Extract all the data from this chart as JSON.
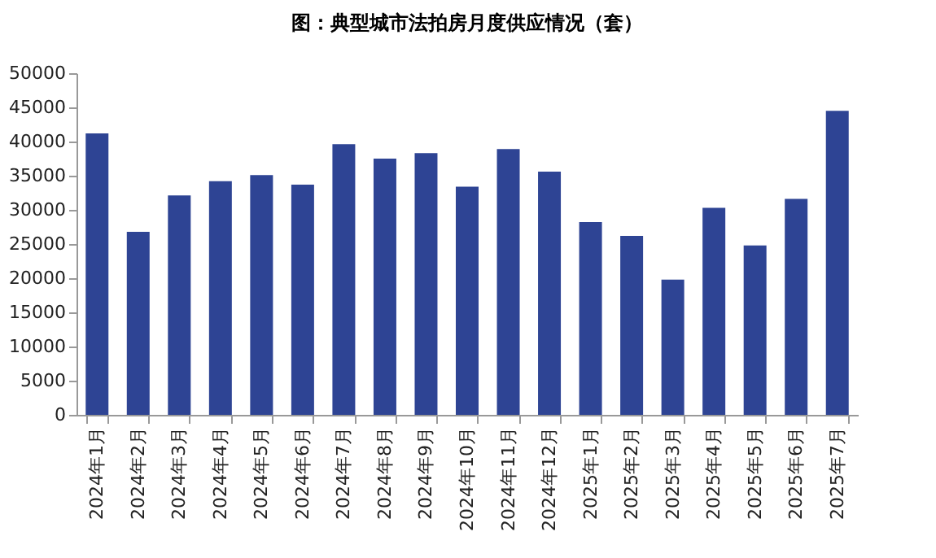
{
  "chart_data": {
    "type": "bar",
    "title": "图：典型城市法拍房月度供应情况（套）",
    "categories": [
      "2024年1月",
      "2024年2月",
      "2024年3月",
      "2024年4月",
      "2024年5月",
      "2024年6月",
      "2024年7月",
      "2024年8月",
      "2024年9月",
      "2024年10月",
      "2024年11月",
      "2024年12月",
      "2025年1月",
      "2025年2月",
      "2025年3月",
      "2025年4月",
      "2025年5月",
      "2025年6月",
      "2025年7月"
    ],
    "values": [
      41200,
      26800,
      32100,
      34200,
      35100,
      33700,
      39600,
      37500,
      38300,
      33400,
      38900,
      35600,
      28200,
      26200,
      19800,
      30300,
      24800,
      31600,
      44500
    ],
    "color": "#2e4494",
    "ylim": [
      0,
      50000
    ],
    "yticks": [
      0,
      5000,
      10000,
      15000,
      20000,
      25000,
      30000,
      35000,
      40000,
      45000,
      50000
    ],
    "grid": false
  }
}
